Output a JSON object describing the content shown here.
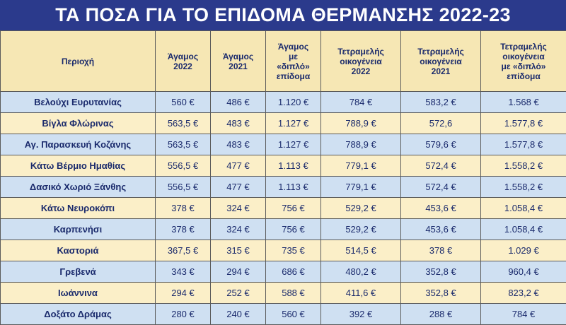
{
  "title": "ΤΑ ΠΟΣΑ ΓΙΑ ΤΟ ΕΠΙΔΟΜΑ ΘΕΡΜΑΝΣΗΣ 2022-23",
  "colors": {
    "banner": "#2b3a8c",
    "header_bg": "#f6e7b4",
    "row_blue": "#cfe0f2",
    "row_cream": "#fbefc8",
    "text": "#1a2a6c"
  },
  "headers": [
    [
      "Περιοχή"
    ],
    [
      "Άγαμος",
      "2022"
    ],
    [
      "Άγαμος",
      "2021"
    ],
    [
      "Άγαμος",
      "με",
      "«διπλό»",
      "επίδομα"
    ],
    [
      "Τετραμελής",
      "οικογένεια",
      "2022"
    ],
    [
      "Τετραμελής",
      "οικογένεια",
      "2021"
    ],
    [
      "Τετραμελής",
      "οικογένεια",
      "με «διπλό»",
      "επίδομα"
    ]
  ],
  "rows": [
    [
      "Βελούχι Ευρυτανίας",
      "560 €",
      "486 €",
      "1.120 €",
      "784 €",
      "583,2 €",
      "1.568 €"
    ],
    [
      "Βίγλα Φλώρινας",
      "563,5 €",
      "483 €",
      "1.127 €",
      "788,9 €",
      "572,6",
      "1.577,8 €"
    ],
    [
      "Αγ. Παρασκευή Κοζάνης",
      "563,5 €",
      "483 €",
      "1.127 €",
      "788,9 €",
      "579,6 €",
      "1.577,8 €"
    ],
    [
      "Κάτω Βέρμιο Ημαθίας",
      "556,5 €",
      "477 €",
      "1.113 €",
      "779,1 €",
      "572,4 €",
      "1.558,2 €"
    ],
    [
      "Δασικό Χωριό Ξάνθης",
      "556,5 €",
      "477 €",
      "1.113 €",
      "779,1 €",
      "572,4 €",
      "1.558,2 €"
    ],
    [
      "Κάτω Νευροκόπι",
      "378 €",
      "324 €",
      "756 €",
      "529,2 €",
      "453,6 €",
      "1.058,4 €"
    ],
    [
      "Καρπενήσι",
      "378 €",
      "324 €",
      "756 €",
      "529,2 €",
      "453,6 €",
      "1.058,4 €"
    ],
    [
      "Καστοριά",
      "367,5 €",
      "315 €",
      "735 €",
      "514,5 €",
      "378 €",
      "1.029 €"
    ],
    [
      "Γρεβενά",
      "343 €",
      "294 €",
      "686 €",
      "480,2 €",
      "352,8 €",
      "960,4 €"
    ],
    [
      "Ιωάννινα",
      "294 €",
      "252 €",
      "588 €",
      "411,6 €",
      "352,8 €",
      "823,2 €"
    ],
    [
      "Δοξάτο Δράμας",
      "280 €",
      "240 €",
      "560 €",
      "392 €",
      "288 €",
      "784 €"
    ]
  ]
}
